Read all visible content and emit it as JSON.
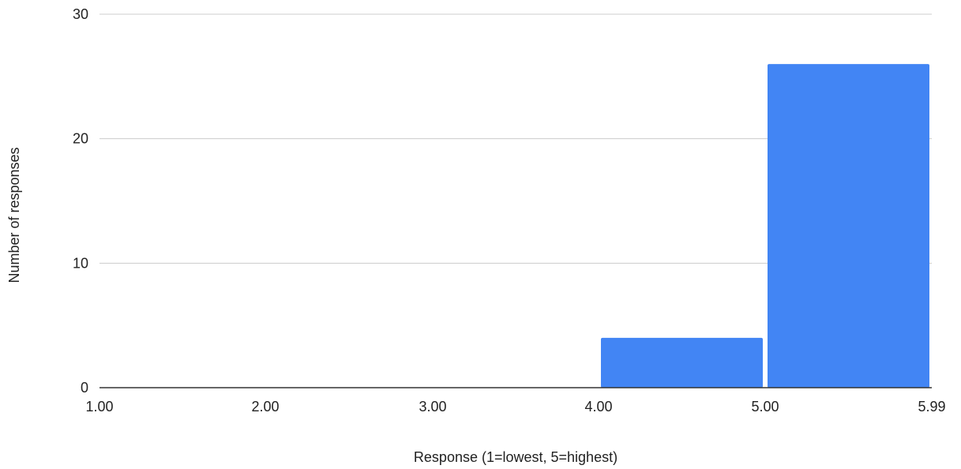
{
  "chart_data": {
    "type": "bar",
    "title": "",
    "xlabel": "Response (1=lowest, 5=highest)",
    "ylabel": "Number of responses",
    "x_ticks": [
      "1.00",
      "2.00",
      "3.00",
      "4.00",
      "5.00",
      "5.99"
    ],
    "y_ticks": [
      "0",
      "10",
      "20",
      "30"
    ],
    "ylim": [
      0,
      30
    ],
    "grid": true,
    "legend": "none",
    "bar_color": "#4285f4",
    "bins": [
      {
        "range": [
          "1.00",
          "2.00"
        ],
        "value": 0
      },
      {
        "range": [
          "2.00",
          "3.00"
        ],
        "value": 0
      },
      {
        "range": [
          "3.00",
          "4.00"
        ],
        "value": 0
      },
      {
        "range": [
          "4.00",
          "5.00"
        ],
        "value": 4
      },
      {
        "range": [
          "5.00",
          "5.99"
        ],
        "value": 26
      }
    ]
  }
}
